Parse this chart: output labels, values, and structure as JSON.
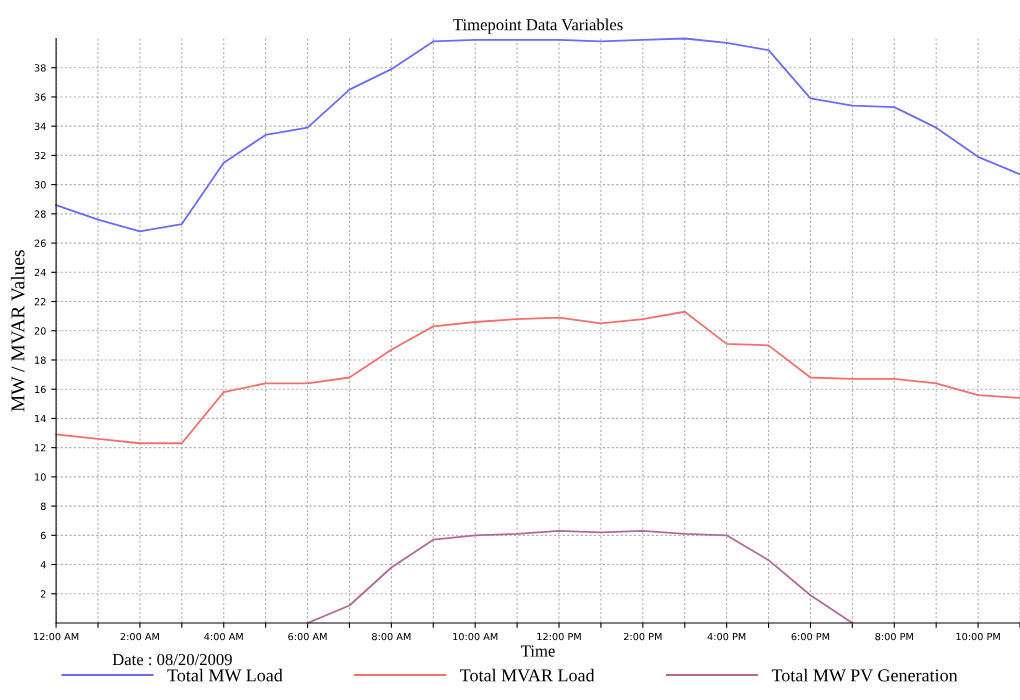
{
  "chart_data": {
    "type": "line",
    "title": "Timepoint Data Variables",
    "xlabel": "Time",
    "ylabel": "MW / MVAR Values",
    "x": [
      0,
      1,
      2,
      3,
      4,
      5,
      6,
      7,
      8,
      9,
      10,
      11,
      12,
      13,
      14,
      15,
      16,
      17,
      18,
      19,
      20,
      21,
      22,
      23
    ],
    "series": [
      {
        "name": "Total MW Load",
        "color": "#6b6bf5",
        "values": [
          28.6,
          27.6,
          26.8,
          27.3,
          31.5,
          33.4,
          33.9,
          36.5,
          37.9,
          39.8,
          39.9,
          39.9,
          39.9,
          39.8,
          39.9,
          40.0,
          39.7,
          39.2,
          35.9,
          35.4,
          35.3,
          33.9,
          31.9,
          30.7
        ]
      },
      {
        "name": "Total MVAR Load",
        "color": "#f07070",
        "values": [
          12.9,
          12.6,
          12.3,
          12.3,
          15.8,
          16.4,
          16.4,
          16.8,
          18.7,
          20.3,
          20.6,
          20.8,
          20.9,
          20.5,
          20.8,
          21.3,
          19.1,
          19.0,
          16.8,
          16.7,
          16.7,
          16.4,
          15.6,
          15.4
        ]
      },
      {
        "name": "Total MW PV Generation",
        "color": "#b06a9a",
        "values": [
          null,
          null,
          null,
          null,
          null,
          null,
          0,
          1.2,
          3.8,
          5.7,
          6.0,
          6.1,
          6.3,
          6.2,
          6.3,
          6.1,
          6.0,
          4.3,
          1.9,
          0,
          null,
          null,
          null,
          null
        ]
      }
    ],
    "xlim": [
      0,
      23
    ],
    "xticks": [
      {
        "value": 0,
        "label": "12:00 AM"
      },
      {
        "value": 1,
        "label": null
      },
      {
        "value": 2,
        "label": "2:00 AM"
      },
      {
        "value": 3,
        "label": null
      },
      {
        "value": 4,
        "label": "4:00 AM"
      },
      {
        "value": 5,
        "label": null
      },
      {
        "value": 6,
        "label": "6:00 AM"
      },
      {
        "value": 7,
        "label": null
      },
      {
        "value": 8,
        "label": "8:00 AM"
      },
      {
        "value": 9,
        "label": null
      },
      {
        "value": 10,
        "label": "10:00 AM"
      },
      {
        "value": 11,
        "label": null
      },
      {
        "value": 12,
        "label": "12:00 PM"
      },
      {
        "value": 13,
        "label": null
      },
      {
        "value": 14,
        "label": "2:00 PM"
      },
      {
        "value": 15,
        "label": null
      },
      {
        "value": 16,
        "label": "4:00 PM"
      },
      {
        "value": 17,
        "label": null
      },
      {
        "value": 18,
        "label": "6:00 PM"
      },
      {
        "value": 19,
        "label": null
      },
      {
        "value": 20,
        "label": "8:00 PM"
      },
      {
        "value": 21,
        "label": null
      },
      {
        "value": 22,
        "label": "10:00 PM"
      },
      {
        "value": 23,
        "label": null
      }
    ],
    "ylim": [
      0,
      40
    ],
    "yticks": [
      2,
      4,
      6,
      8,
      10,
      12,
      14,
      16,
      18,
      20,
      22,
      24,
      26,
      28,
      30,
      32,
      34,
      36,
      38
    ],
    "grid": true,
    "legend": "bottom",
    "marker": "none",
    "line_style": "solid",
    "annotations": [
      "Date : 08/20/2009"
    ]
  }
}
